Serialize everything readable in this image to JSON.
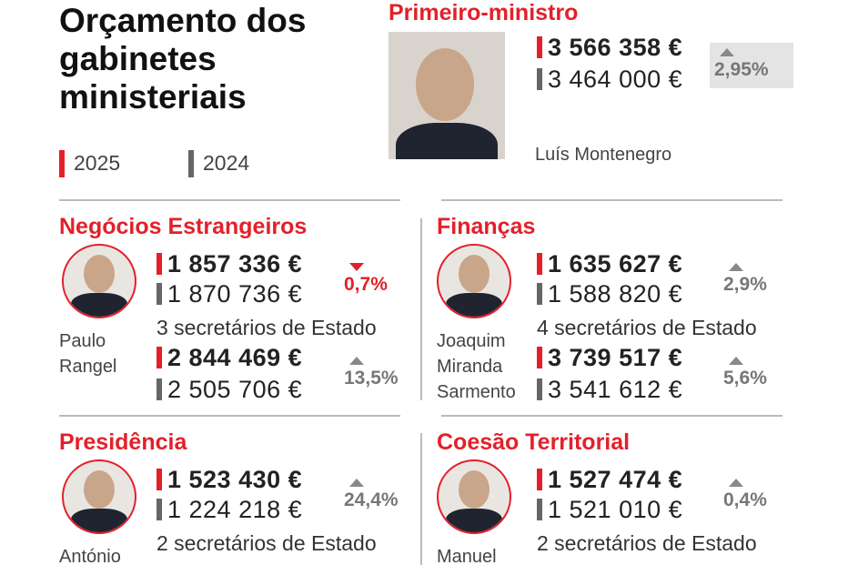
{
  "header": {
    "title": "Orçamento dos gabinetes ministeriais",
    "legend": [
      {
        "label": "2025",
        "color": "#e3202a"
      },
      {
        "label": "2024",
        "color": "#666666"
      }
    ]
  },
  "prime_minister": {
    "label": "Primeiro-ministro",
    "name": "Luís Montenegro",
    "budget_2025": "3 566 358 €",
    "budget_2024": "3 464 000 €",
    "change": {
      "direction": "up",
      "text": "2,95%"
    }
  },
  "ministries": [
    {
      "name": "Negócios Estrangeiros",
      "minister": "Paulo Rangel",
      "office": {
        "budget_2025": "1 857 336 €",
        "budget_2024": "1 870 736 €",
        "change": {
          "direction": "down",
          "text": "0,7%"
        }
      },
      "secretaries_label": "3 secretários de Estado",
      "secretaries": {
        "budget_2025": "2 844 469 €",
        "budget_2024": "2 505 706 €",
        "change": {
          "direction": "up",
          "text": "13,5%"
        }
      }
    },
    {
      "name": "Finanças",
      "minister": "Joaquim Miranda Sarmento",
      "office": {
        "budget_2025": "1 635 627 €",
        "budget_2024": "1 588 820 €",
        "change": {
          "direction": "up",
          "text": "2,9%"
        }
      },
      "secretaries_label": "4 secretários de Estado",
      "secretaries": {
        "budget_2025": "3 739 517 €",
        "budget_2024": "3 541 612 €",
        "change": {
          "direction": "up",
          "text": "5,6%"
        }
      }
    },
    {
      "name": "Presidência",
      "minister": "António",
      "office": {
        "budget_2025": "1 523 430 €",
        "budget_2024": "1 224 218 €",
        "change": {
          "direction": "up",
          "text": "24,4%"
        }
      },
      "secretaries_label": "2 secretários de Estado"
    },
    {
      "name": "Coesão Territorial",
      "minister": "Manuel",
      "office": {
        "budget_2025": "1 527 474 €",
        "budget_2024": "1 521 010 €",
        "change": {
          "direction": "up",
          "text": "0,4%"
        }
      },
      "secretaries_label": "2 secretários de Estado"
    }
  ]
}
